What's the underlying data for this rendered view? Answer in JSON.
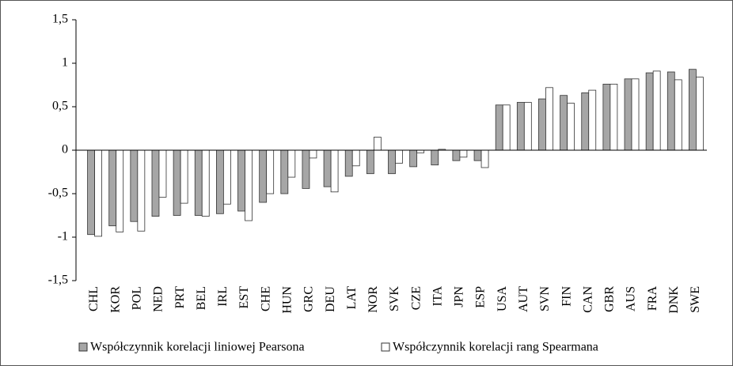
{
  "chart_data": {
    "type": "bar",
    "categories": [
      "CHL",
      "KOR",
      "POL",
      "NED",
      "PRT",
      "BEL",
      "IRL",
      "EST",
      "CHE",
      "HUN",
      "GRC",
      "DEU",
      "LAT",
      "NOR",
      "SVK",
      "CZE",
      "ITA",
      "JPN",
      "ESP",
      "USA",
      "AUT",
      "SVN",
      "FIN",
      "CAN",
      "GBR",
      "AUS",
      "FRA",
      "DNK",
      "SWE"
    ],
    "series": [
      {
        "name": "Współczynnik korelacji liniowej Pearsona",
        "color": "#a6a6a6",
        "values": [
          -0.97,
          -0.87,
          -0.82,
          -0.76,
          -0.75,
          -0.75,
          -0.73,
          -0.7,
          -0.6,
          -0.5,
          -0.44,
          -0.42,
          -0.3,
          -0.27,
          -0.27,
          -0.19,
          -0.17,
          -0.12,
          -0.12,
          0.52,
          0.55,
          0.59,
          0.63,
          0.66,
          0.76,
          0.82,
          0.89,
          0.9,
          0.93
        ]
      },
      {
        "name": "Współczynnik korelacji rang Spearmana",
        "color": "#ffffff",
        "values": [
          -0.99,
          -0.94,
          -0.93,
          -0.54,
          -0.61,
          -0.76,
          -0.62,
          -0.81,
          -0.5,
          -0.31,
          -0.09,
          -0.48,
          -0.18,
          0.15,
          -0.15,
          -0.03,
          0.01,
          -0.08,
          -0.2,
          0.52,
          0.55,
          0.72,
          0.54,
          0.69,
          0.76,
          0.82,
          0.91,
          0.81,
          0.84
        ]
      }
    ],
    "ylim": [
      -1.5,
      1.5
    ],
    "yticks": [
      {
        "value": -1.5,
        "label": "-1,5"
      },
      -1,
      {
        "value": -0.5,
        "label": "-0,5"
      },
      0,
      {
        "value": 0.5,
        "label": "0,5"
      },
      1,
      {
        "value": 1.5,
        "label": "1,5"
      }
    ],
    "legend": "bottom"
  }
}
